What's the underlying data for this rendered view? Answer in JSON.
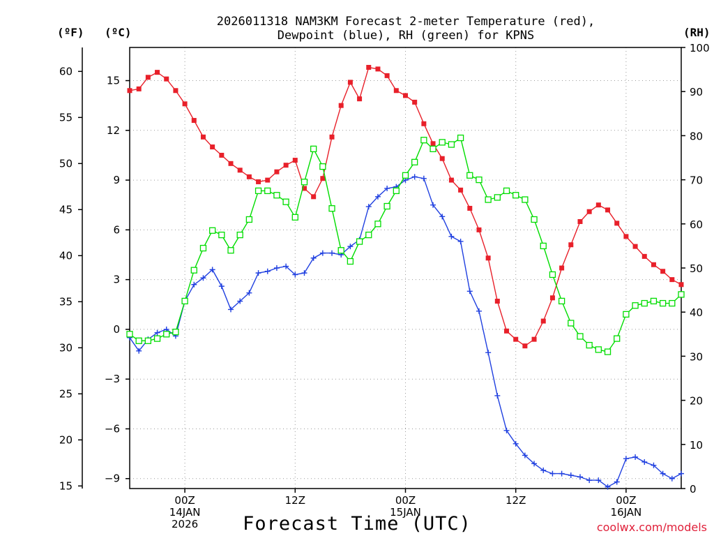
{
  "chart_data": {
    "type": "line",
    "title": [
      "2026011318 NAM3KM Forecast 2-meter Temperature (red),",
      "Dewpoint (blue), RH (green) for KPNS"
    ],
    "xlabel": "Forecast Time (UTC)",
    "credit": "coolwx.com/models",
    "axis_units": {
      "fahrenheit": "(ºF)",
      "celsius": "(ºC)",
      "rh": "(RH)"
    },
    "x_range_hours": [
      0,
      60
    ],
    "x_ticks": [
      {
        "hour": 6,
        "lines": [
          "00Z",
          "14JAN",
          "2026"
        ]
      },
      {
        "hour": 18,
        "lines": [
          "12Z"
        ]
      },
      {
        "hour": 30,
        "lines": [
          "00Z",
          "15JAN"
        ]
      },
      {
        "hour": 42,
        "lines": [
          "12Z"
        ]
      },
      {
        "hour": 54,
        "lines": [
          "00Z",
          "16JAN"
        ]
      }
    ],
    "celsius_axis": {
      "ylim": [
        -9.6,
        17.0
      ],
      "ticks": [
        -9,
        -6,
        -3,
        0,
        3,
        6,
        9,
        12,
        15
      ]
    },
    "fahrenheit_axis": {
      "ticks": [
        15,
        20,
        25,
        30,
        35,
        40,
        45,
        50,
        55,
        60
      ]
    },
    "rh_axis": {
      "ylim": [
        0,
        100
      ],
      "ticks": [
        0,
        10,
        20,
        30,
        40,
        50,
        60,
        70,
        80,
        90,
        100
      ]
    },
    "series": [
      {
        "name": "2-meter Temperature",
        "axis": "celsius",
        "color": "#e8202a",
        "marker": "filled-square",
        "x": [
          0,
          1,
          2,
          3,
          4,
          5,
          6,
          7,
          8,
          9,
          10,
          11,
          12,
          13,
          14,
          15,
          16,
          17,
          18,
          19,
          20,
          21,
          22,
          23,
          24,
          25,
          26,
          27,
          28,
          29,
          30,
          31,
          32,
          33,
          34,
          35,
          36,
          37,
          38,
          39,
          40,
          41,
          42,
          43,
          44,
          45,
          46,
          47,
          48,
          49,
          50,
          51,
          52,
          53,
          54,
          55,
          56,
          57,
          58,
          59,
          60
        ],
        "values": [
          14.4,
          14.5,
          15.2,
          15.5,
          15.1,
          14.4,
          13.6,
          12.6,
          11.6,
          11.0,
          10.5,
          10.0,
          9.6,
          9.2,
          8.9,
          9.0,
          9.5,
          9.9,
          10.2,
          8.5,
          8.0,
          9.1,
          11.6,
          13.5,
          14.9,
          13.9,
          15.8,
          15.7,
          15.3,
          14.4,
          14.1,
          13.7,
          12.4,
          11.2,
          10.3,
          9.0,
          8.4,
          7.3,
          6.0,
          4.3,
          1.7,
          -0.1,
          -0.6,
          -1.0,
          -0.6,
          0.5,
          1.9,
          3.7,
          5.1,
          6.5,
          7.1,
          7.5,
          7.2,
          6.4,
          5.6,
          5.0,
          4.4,
          3.9,
          3.5,
          3.0,
          2.7
        ]
      },
      {
        "name": "Dewpoint",
        "axis": "celsius",
        "color": "#2040e0",
        "marker": "plus",
        "x": [
          0,
          1,
          2,
          3,
          4,
          5,
          6,
          7,
          8,
          9,
          10,
          11,
          12,
          13,
          14,
          15,
          16,
          17,
          18,
          19,
          20,
          21,
          22,
          23,
          24,
          25,
          26,
          27,
          28,
          29,
          30,
          31,
          32,
          33,
          34,
          35,
          36,
          37,
          38,
          39,
          40,
          41,
          42,
          43,
          44,
          45,
          46,
          47,
          48,
          49,
          50,
          51,
          52,
          53,
          54,
          55,
          56,
          57,
          58,
          59,
          60
        ],
        "values": [
          -0.5,
          -1.3,
          -0.6,
          -0.2,
          0.0,
          -0.4,
          1.7,
          2.7,
          3.1,
          3.6,
          2.6,
          1.2,
          1.7,
          2.2,
          3.4,
          3.5,
          3.7,
          3.8,
          3.3,
          3.4,
          4.3,
          4.6,
          4.6,
          4.5,
          5.0,
          5.4,
          7.4,
          8.0,
          8.5,
          8.6,
          9.0,
          9.2,
          9.1,
          7.5,
          6.8,
          5.6,
          5.3,
          2.3,
          1.1,
          -1.4,
          -4.0,
          -6.1,
          -6.9,
          -7.6,
          -8.1,
          -8.5,
          -8.7,
          -8.7,
          -8.8,
          -8.9,
          -9.1,
          -9.1,
          -9.5,
          -9.2,
          -7.8,
          -7.7,
          -8.0,
          -8.2,
          -8.7,
          -9.0,
          -8.7
        ]
      },
      {
        "name": "RH",
        "axis": "rh",
        "color": "#00dd00",
        "marker": "open-square",
        "x": [
          0,
          1,
          2,
          3,
          4,
          5,
          6,
          7,
          8,
          9,
          10,
          11,
          12,
          13,
          14,
          15,
          16,
          17,
          18,
          19,
          20,
          21,
          22,
          23,
          24,
          25,
          26,
          27,
          28,
          29,
          30,
          31,
          32,
          33,
          34,
          35,
          36,
          37,
          38,
          39,
          40,
          41,
          42,
          43,
          44,
          45,
          46,
          47,
          48,
          49,
          50,
          51,
          52,
          53,
          54,
          55,
          56,
          57,
          58,
          59,
          60
        ],
        "values": [
          35,
          33.5,
          33.5,
          34,
          35,
          35.5,
          42.5,
          49.5,
          54.5,
          58.5,
          57.5,
          54,
          57.5,
          61,
          67.5,
          67.5,
          66.5,
          65,
          61.5,
          69.5,
          77,
          73,
          63.5,
          54,
          51.5,
          56,
          57.5,
          60,
          64,
          67.5,
          71,
          74,
          79,
          77,
          78.5,
          78,
          79.5,
          71,
          70,
          65.5,
          66,
          67.5,
          66.5,
          65.5,
          61,
          55,
          48.5,
          42.5,
          37.5,
          34.5,
          32.5,
          31.5,
          31,
          34,
          39.5,
          41.5,
          42,
          42.5,
          42,
          42,
          44
        ]
      }
    ]
  }
}
